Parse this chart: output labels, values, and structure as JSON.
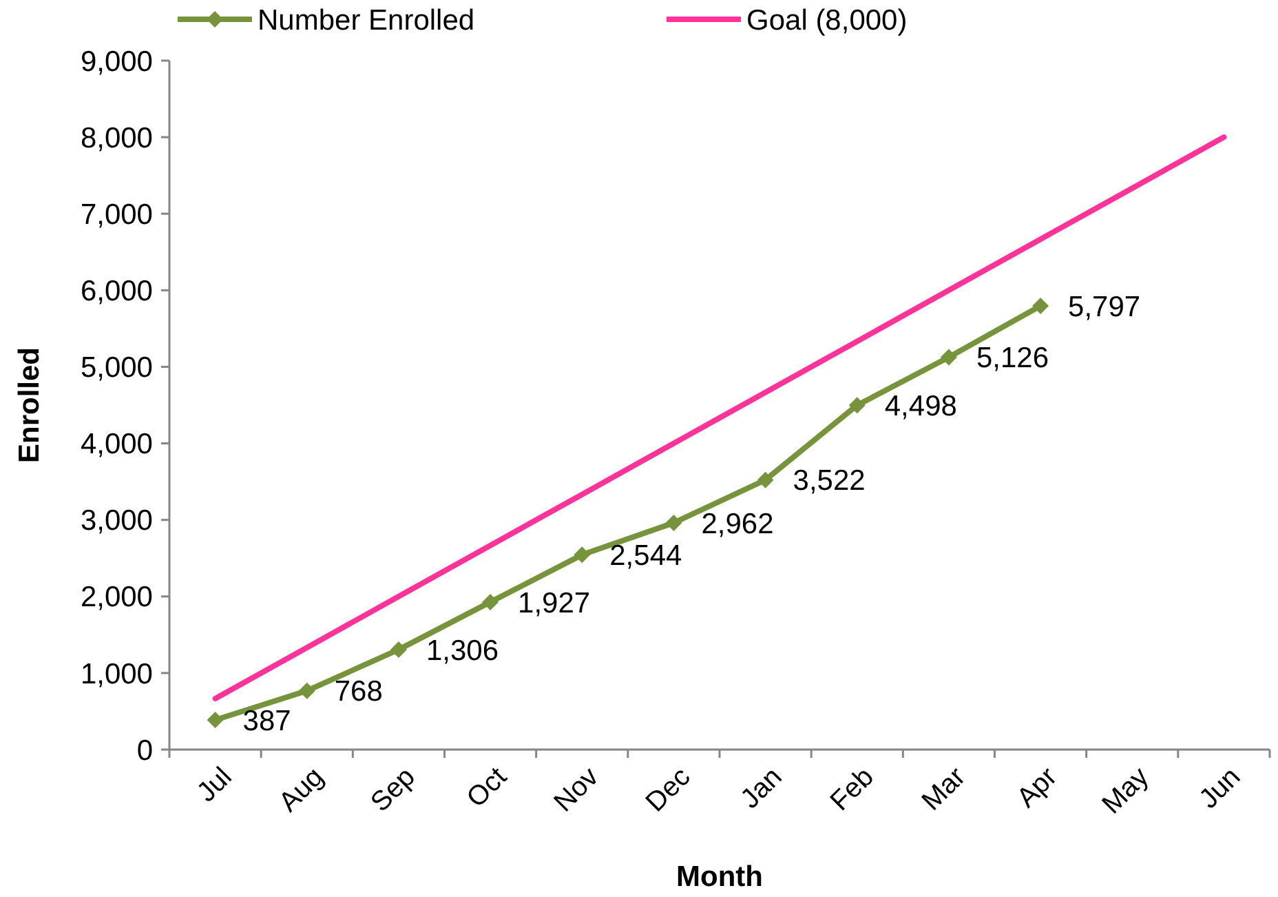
{
  "chart_data": {
    "type": "line",
    "xlabel": "Month",
    "ylabel": "Enrolled",
    "categories": [
      "Jul",
      "Aug",
      "Sep",
      "Oct",
      "Nov",
      "Dec",
      "Jan",
      "Feb",
      "Mar",
      "Apr",
      "May",
      "Jun"
    ],
    "series": [
      {
        "name": "Number Enrolled",
        "color": "#77933c",
        "marker": "diamond",
        "values": [
          387,
          768,
          1306,
          1927,
          2544,
          2962,
          3522,
          4498,
          5126,
          5797,
          null,
          null
        ],
        "value_labels": [
          "387",
          "768",
          "1,306",
          "1,927",
          "2,544",
          "2,962",
          "3,522",
          "4,498",
          "5,126",
          "5,797",
          null,
          null
        ]
      },
      {
        "name": "Goal (8,000)",
        "color": "#ff3399",
        "marker": "none",
        "values": [
          667,
          1333,
          2000,
          2667,
          3333,
          4000,
          4667,
          5333,
          6000,
          6667,
          7333,
          8000
        ]
      }
    ],
    "ylim": [
      0,
      9000
    ],
    "yticks": [
      {
        "value": 0,
        "label": "0"
      },
      {
        "value": 1000,
        "label": "1,000"
      },
      {
        "value": 2000,
        "label": "2,000"
      },
      {
        "value": 3000,
        "label": "3,000"
      },
      {
        "value": 4000,
        "label": "4,000"
      },
      {
        "value": 5000,
        "label": "5,000"
      },
      {
        "value": 6000,
        "label": "6,000"
      },
      {
        "value": 7000,
        "label": "7,000"
      },
      {
        "value": 8000,
        "label": "8,000"
      },
      {
        "value": 9000,
        "label": "9,000"
      }
    ],
    "legend": "top",
    "grid": false,
    "line_style": "solid"
  }
}
